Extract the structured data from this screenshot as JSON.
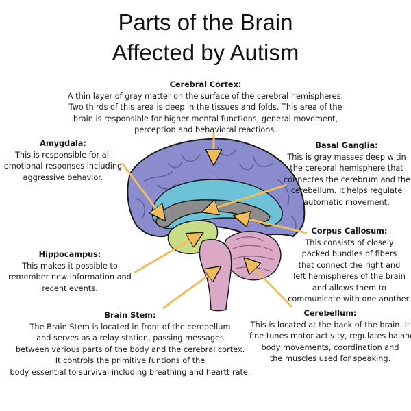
{
  "title": {
    "line1": "Parts of the Brain",
    "line2": "Affected by Autism"
  },
  "labels": {
    "cortex": {
      "heading": "Cerebral Cortex:",
      "lines": [
        "A thin layer of gray matter on the surface of the cerebral hemispheres.",
        "Two thirds of this area is deep in the tissues and folds. This area of the",
        "brain is responsible for higher mental functions, general movement,",
        "perception and behavioral reactions."
      ]
    },
    "amygdala": {
      "heading": "Amygdala:",
      "lines": [
        "This is responsible for all",
        "emotional responses including",
        "aggressive behavior."
      ]
    },
    "basal": {
      "heading": "Basal Ganglia:",
      "lines": [
        "This is gray masses deep witin",
        "the cerebral hemisphere that",
        "connectes the cerebrum and the",
        "cerebellum. It helps regulate",
        "automatic movement."
      ]
    },
    "callosum": {
      "heading": "Corpus Callosum:",
      "lines": [
        "This consists of closely",
        "packed bundles of fibers",
        "that connect the right and",
        "left hemispheres of the brain",
        "and allows them to",
        "communicate with one another."
      ]
    },
    "hippo": {
      "heading": "Hippocampus:",
      "lines": [
        "This makes it possible to",
        "remember new information and",
        "recent events."
      ]
    },
    "stem": {
      "heading": "Brain Stem:",
      "lines": [
        "The Brain Stem is located in front of the cerebellum",
        "and serves as a relay station, passing messages",
        "between various parts of the body and the cerebral cortex.",
        "It controls the primitive funtions of the",
        "body essential to survival including breathing and heartt rate."
      ]
    },
    "cerebellum": {
      "heading": "Cerebellum:",
      "lines": [
        "This is located at the back of the brain. It",
        "fine tunes motor activity, regulates balance,",
        "body movements, coordination and",
        "the muscles used for speaking."
      ]
    }
  },
  "colors": {
    "cortex": "#8a8ccd",
    "cortex_gyri": "#5d5fa6",
    "inner_blue": "#6ec2d8",
    "callosum_gray": "#8c8c8c",
    "thalamus_green": "#c9dc86",
    "stem_pink": "#d9a9c5",
    "outline": "#1a1a1a",
    "arrow": "#f1bc5a"
  }
}
